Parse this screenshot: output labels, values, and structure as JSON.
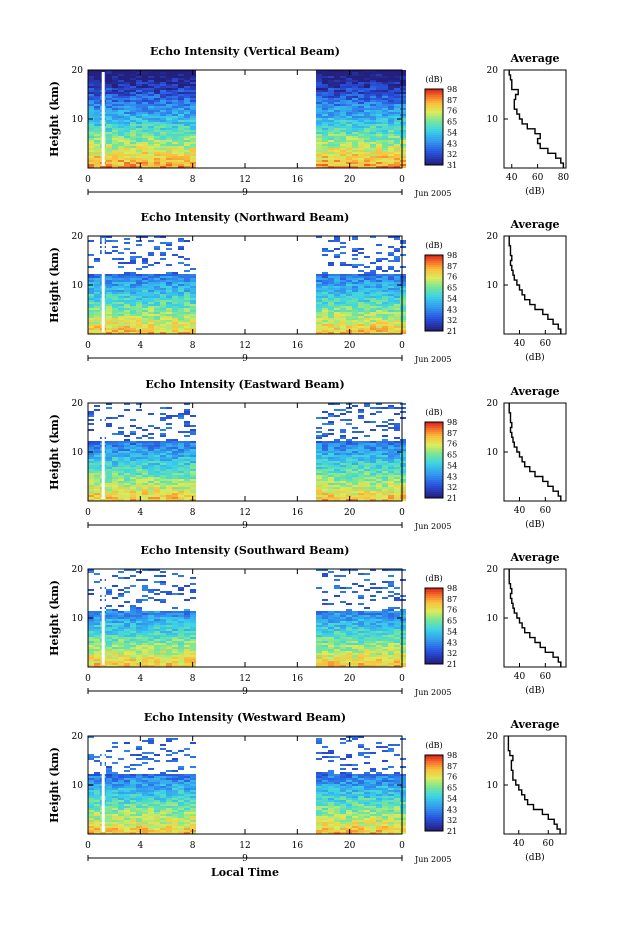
{
  "chart_data": [
    {
      "type": "heatmap",
      "title": "Echo Intensity (Vertical Beam)",
      "ylabel": "Height (km)",
      "ylim": [
        0,
        20
      ],
      "yticks": [
        10,
        20
      ],
      "xlim": [
        0,
        24
      ],
      "xtick_labels": [
        "0",
        "4",
        "8",
        "12",
        "16",
        "20",
        "0"
      ],
      "day_label": "9",
      "date_label": "Jun 2005",
      "colorbar": {
        "unit": "(dB)",
        "ticks": [
          31,
          32,
          43,
          54,
          65,
          76,
          87,
          98
        ]
      },
      "data_gaps_hours": [
        [
          8,
          17
        ]
      ],
      "profile": {
        "title": "Average",
        "xlabel": "(dB)",
        "xticks": [
          40,
          60,
          80
        ],
        "xlim": [
          34,
          82
        ],
        "height_km": [
          1,
          2,
          3,
          4,
          5,
          6,
          7,
          8,
          9,
          10,
          11,
          12,
          13,
          14,
          15,
          16,
          17,
          18,
          19,
          20
        ],
        "values": [
          80,
          78,
          74,
          68,
          62,
          60,
          62,
          58,
          52,
          48,
          46,
          44,
          42,
          42,
          43,
          45,
          40,
          40,
          39,
          38
        ]
      }
    },
    {
      "type": "heatmap",
      "title": "Echo Intensity (Northward Beam)",
      "ylabel": "Height (km)",
      "ylim": [
        0,
        20
      ],
      "yticks": [
        10,
        20
      ],
      "xlim": [
        0,
        24
      ],
      "xtick_labels": [
        "0",
        "4",
        "8",
        "12",
        "16",
        "20",
        "0"
      ],
      "day_label": "9",
      "date_label": "Jun 2005",
      "colorbar": {
        "unit": "(dB)",
        "ticks": [
          21,
          32,
          43,
          54,
          65,
          76,
          87,
          98
        ]
      },
      "data_gaps_hours": [
        [
          8,
          17
        ]
      ],
      "profile": {
        "title": "Average",
        "xlabel": "(dB)",
        "xticks": [
          40,
          60
        ],
        "xlim": [
          28,
          76
        ],
        "height_km": [
          1,
          2,
          3,
          4,
          5,
          6,
          7,
          8,
          9,
          10,
          11,
          12,
          13,
          14,
          15,
          16,
          17,
          18,
          19,
          20
        ],
        "values": [
          72,
          70,
          66,
          62,
          58,
          52,
          48,
          44,
          42,
          40,
          38,
          36,
          35,
          34,
          33,
          34,
          33,
          33,
          32,
          32
        ]
      }
    },
    {
      "type": "heatmap",
      "title": "Echo Intensity (Eastward Beam)",
      "ylabel": "Height (km)",
      "ylim": [
        0,
        20
      ],
      "yticks": [
        10,
        20
      ],
      "xlim": [
        0,
        24
      ],
      "xtick_labels": [
        "0",
        "4",
        "8",
        "12",
        "16",
        "20",
        "0"
      ],
      "day_label": "9",
      "date_label": "Jun 2005",
      "colorbar": {
        "unit": "(dB)",
        "ticks": [
          21,
          32,
          43,
          54,
          65,
          76,
          87,
          98
        ]
      },
      "data_gaps_hours": [
        [
          8,
          17
        ]
      ],
      "profile": {
        "title": "Average",
        "xlabel": "(dB)",
        "xticks": [
          40,
          60
        ],
        "xlim": [
          28,
          76
        ],
        "height_km": [
          1,
          2,
          3,
          4,
          5,
          6,
          7,
          8,
          9,
          10,
          11,
          12,
          13,
          14,
          15,
          16,
          17,
          18,
          19,
          20
        ],
        "values": [
          72,
          70,
          66,
          62,
          58,
          52,
          48,
          44,
          42,
          40,
          38,
          36,
          35,
          34,
          33,
          34,
          33,
          33,
          32,
          32
        ]
      }
    },
    {
      "type": "heatmap",
      "title": "Echo Intensity (Southward Beam)",
      "ylabel": "Height (km)",
      "ylim": [
        0,
        20
      ],
      "yticks": [
        10,
        20
      ],
      "xlim": [
        0,
        24
      ],
      "xtick_labels": [
        "0",
        "4",
        "8",
        "12",
        "16",
        "20",
        "0"
      ],
      "day_label": "9",
      "date_label": "Jun 2005",
      "colorbar": {
        "unit": "(dB)",
        "ticks": [
          21,
          32,
          43,
          54,
          65,
          76,
          87,
          98
        ]
      },
      "data_gaps_hours": [
        [
          8,
          17
        ]
      ],
      "profile": {
        "title": "Average",
        "xlabel": "(dB)",
        "xticks": [
          40,
          60
        ],
        "xlim": [
          28,
          76
        ],
        "height_km": [
          1,
          2,
          3,
          4,
          5,
          6,
          7,
          8,
          9,
          10,
          11,
          12,
          13,
          14,
          15,
          16,
          17,
          18,
          19,
          20
        ],
        "values": [
          72,
          70,
          66,
          60,
          56,
          52,
          48,
          44,
          42,
          40,
          38,
          36,
          35,
          34,
          33,
          34,
          33,
          32,
          32,
          32
        ]
      }
    },
    {
      "type": "heatmap",
      "title": "Echo Intensity (Westward Beam)",
      "ylabel": "Height (km)",
      "ylim": [
        0,
        20
      ],
      "yticks": [
        10,
        20
      ],
      "xlim": [
        0,
        24
      ],
      "xtick_labels": [
        "0",
        "4",
        "8",
        "12",
        "16",
        "20",
        "0"
      ],
      "day_label": "9",
      "date_label": "Jun 2005",
      "xlabel": "Local Time",
      "colorbar": {
        "unit": "(dB)",
        "ticks": [
          21,
          32,
          43,
          54,
          65,
          76,
          87,
          98
        ]
      },
      "data_gaps_hours": [
        [
          8,
          17
        ]
      ],
      "profile": {
        "title": "Average",
        "xlabel": "(dB)",
        "xticks": [
          40,
          60
        ],
        "xlim": [
          30,
          72
        ],
        "height_km": [
          1,
          2,
          3,
          4,
          5,
          6,
          7,
          8,
          9,
          10,
          11,
          12,
          13,
          14,
          15,
          16,
          17,
          18,
          19,
          20
        ],
        "values": [
          68,
          66,
          64,
          60,
          56,
          50,
          46,
          44,
          42,
          40,
          38,
          36,
          36,
          35,
          35,
          36,
          34,
          33,
          33,
          33
        ]
      }
    }
  ]
}
